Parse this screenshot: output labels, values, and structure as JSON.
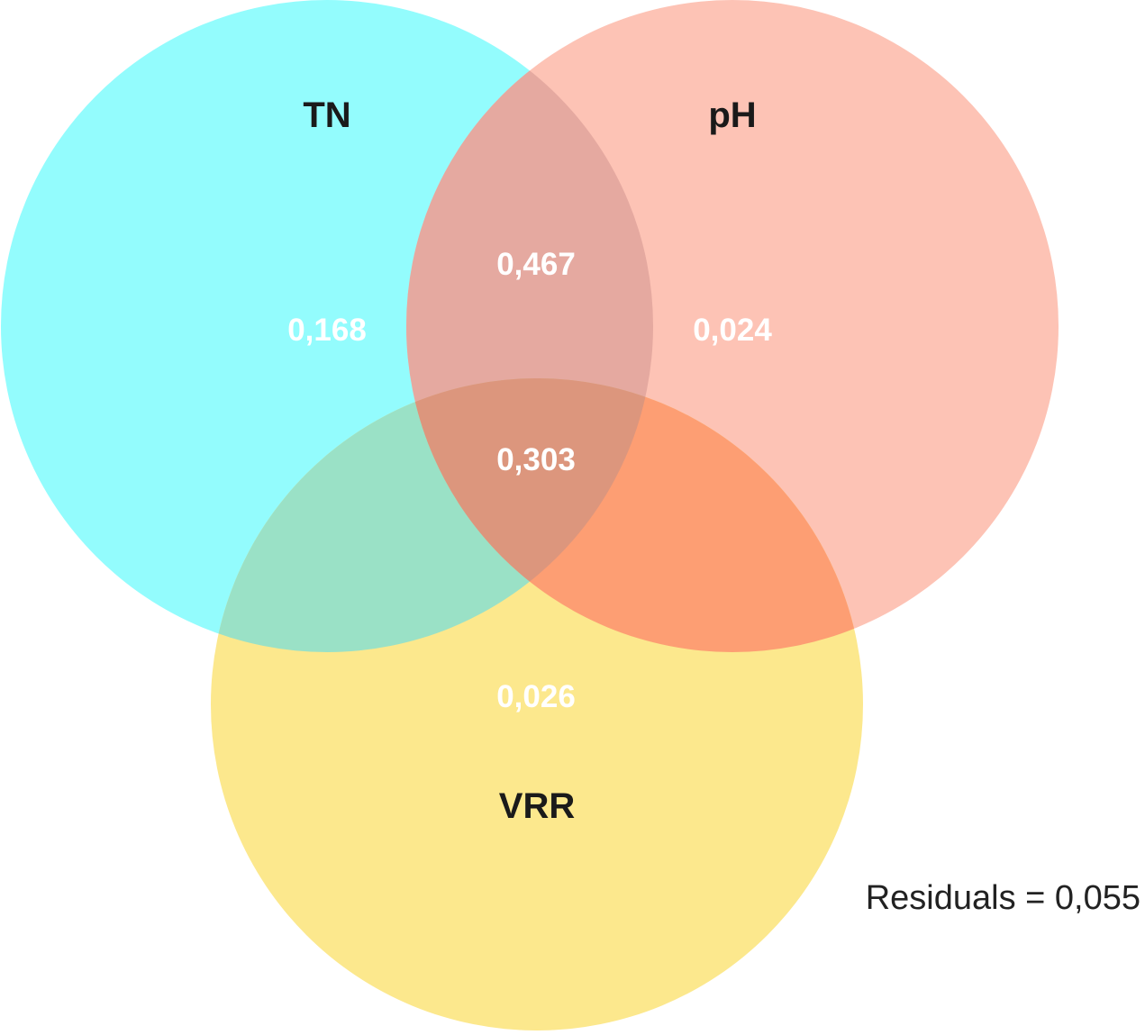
{
  "diagram": {
    "type": "venn",
    "sets": {
      "tn": {
        "label": "TN",
        "color": "#93fcfd"
      },
      "ph": {
        "label": "pH",
        "color": "#fdc3b5"
      },
      "vrr": {
        "label": "VRR",
        "color": "#fce88d"
      }
    },
    "overlap_colors": {
      "tn_ph": "#e5a9a0",
      "tn_vrr": "#9ae1c6",
      "ph_vrr": "#fd9e73",
      "tn_ph_vrr": "#dc967d"
    },
    "regions": {
      "tn_only": "0,168",
      "ph_only": "0,024",
      "tn_ph": "0,467",
      "tn_ph_vrr": "0,303",
      "vrr_only": "0,026"
    },
    "residuals": "Residuals = 0,055"
  }
}
